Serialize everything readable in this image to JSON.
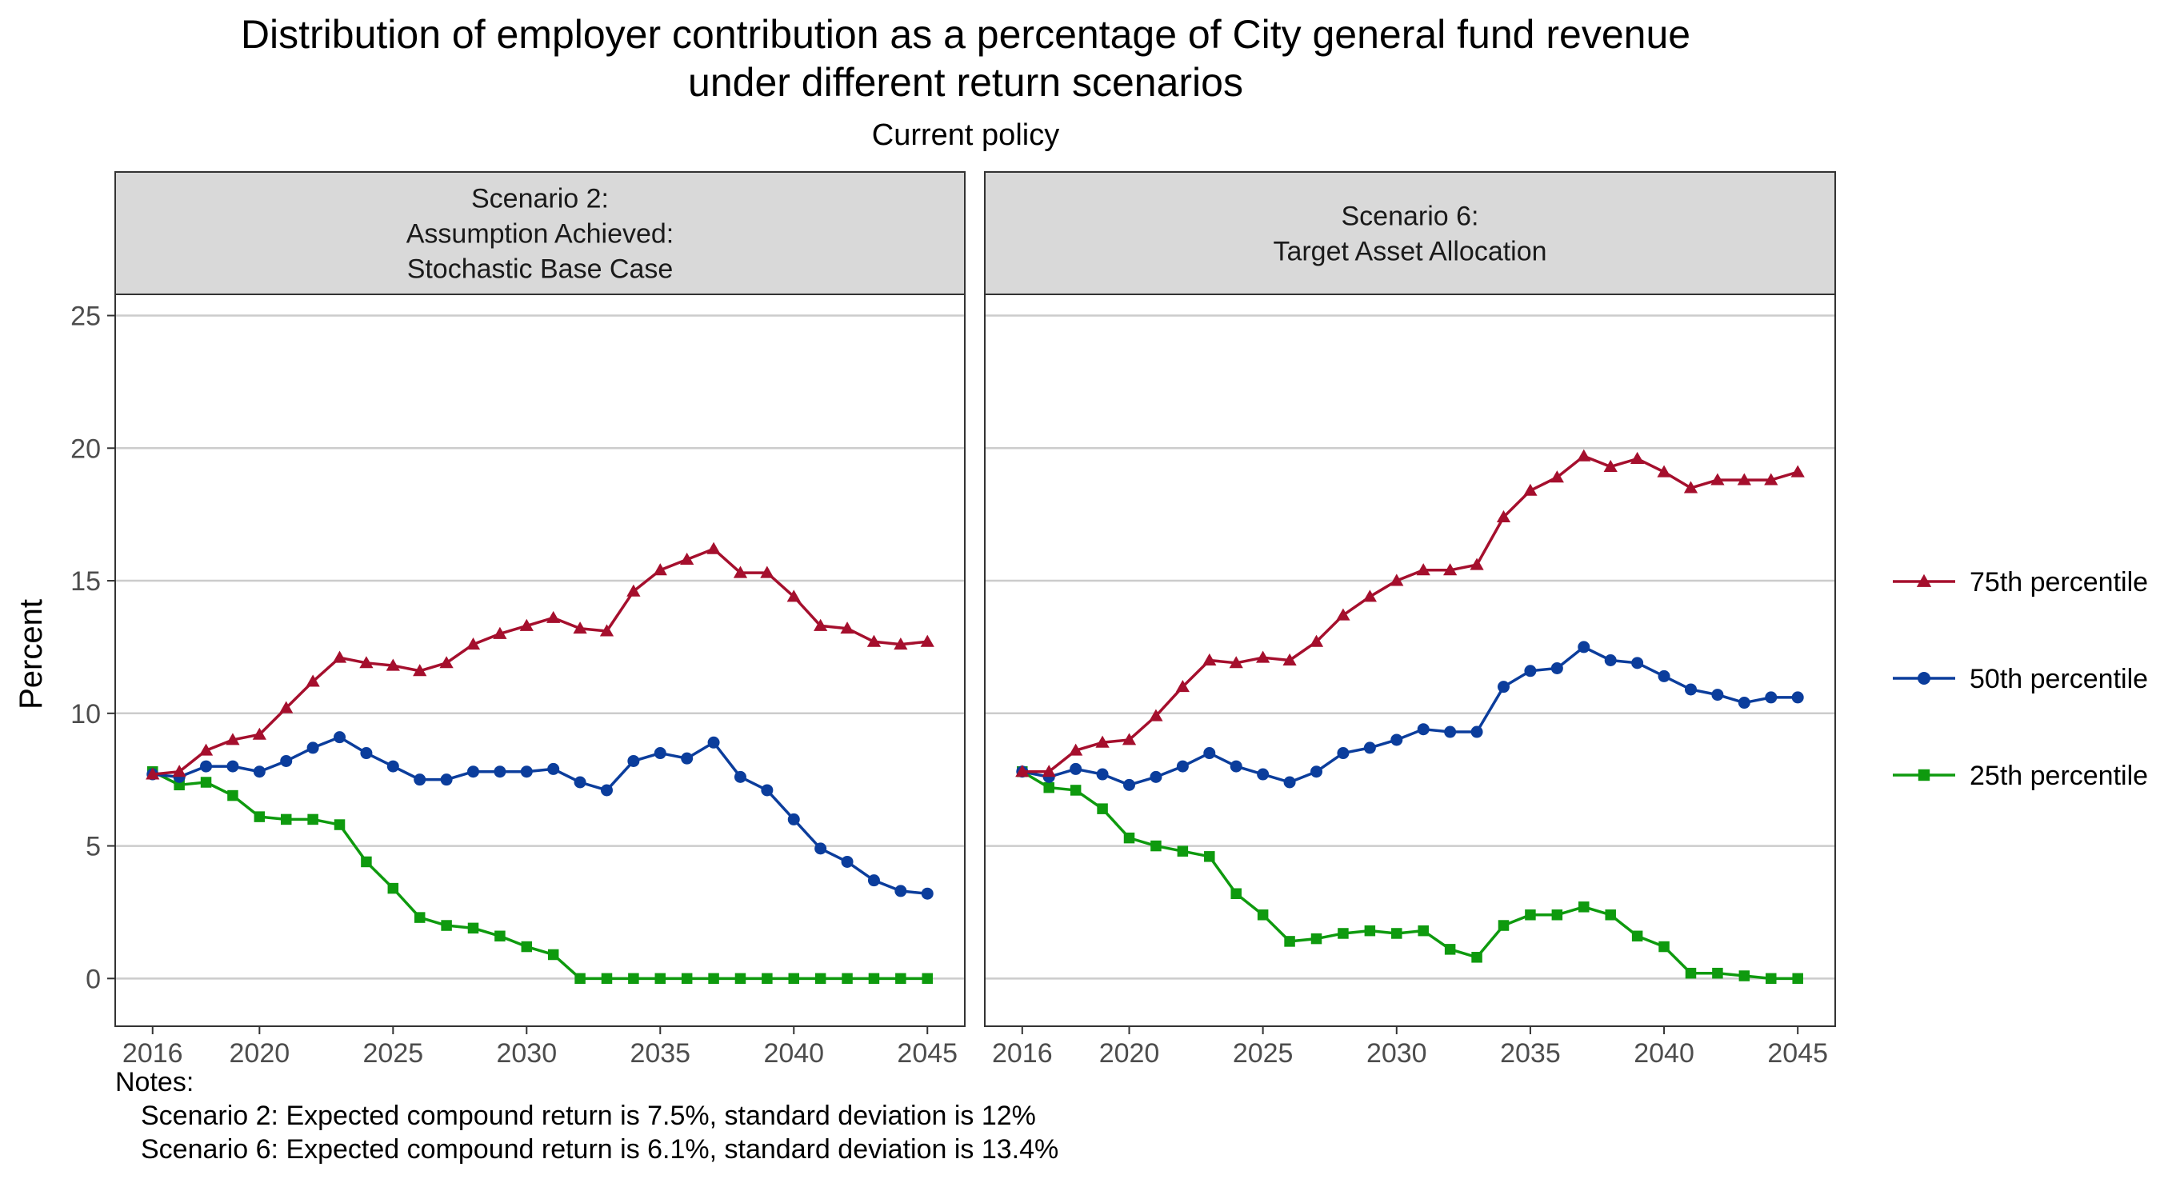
{
  "chart_data": {
    "type": "line",
    "title": "Distribution of employer contribution as a percentage of City general fund revenue",
    "title_line2": "under different return scenarios",
    "subtitle": "Current policy",
    "ylabel": "Percent",
    "xlabel": "",
    "ylim": [
      -1.8,
      25.8
    ],
    "xlim": [
      2014.6,
      2046.4
    ],
    "yticks": [
      0,
      5,
      10,
      15,
      20,
      25
    ],
    "xticks": [
      2016,
      2020,
      2025,
      2030,
      2035,
      2040,
      2045
    ],
    "grid": "horizontal major lines",
    "legend_position": "right",
    "legend": [
      {
        "label": "75th percentile",
        "color": "#a50f2d",
        "marker": "triangle"
      },
      {
        "label": "50th percentile",
        "color": "#0b3d9c",
        "marker": "circle"
      },
      {
        "label": "25th percentile",
        "color": "#0e9a0e",
        "marker": "square"
      }
    ],
    "x": [
      2016,
      2017,
      2018,
      2019,
      2020,
      2021,
      2022,
      2023,
      2024,
      2025,
      2026,
      2027,
      2028,
      2029,
      2030,
      2031,
      2032,
      2033,
      2034,
      2035,
      2036,
      2037,
      2038,
      2039,
      2040,
      2041,
      2042,
      2043,
      2044,
      2045
    ],
    "panels": [
      {
        "strip": [
          "Scenario 2:",
          "Assumption Achieved:",
          "Stochastic Base Case"
        ],
        "series": [
          {
            "name": "75th percentile",
            "values": [
              7.7,
              7.8,
              8.6,
              9.0,
              9.2,
              10.2,
              11.2,
              12.1,
              11.9,
              11.8,
              11.6,
              11.9,
              12.6,
              13.0,
              13.3,
              13.6,
              13.2,
              13.1,
              14.6,
              15.4,
              15.8,
              16.2,
              15.3,
              15.3,
              14.4,
              13.3,
              13.2,
              12.7,
              12.6,
              12.7
            ]
          },
          {
            "name": "50th percentile",
            "values": [
              7.7,
              7.6,
              8.0,
              8.0,
              7.8,
              8.2,
              8.7,
              9.1,
              8.5,
              8.0,
              7.5,
              7.5,
              7.8,
              7.8,
              7.8,
              7.9,
              7.4,
              7.1,
              8.2,
              8.5,
              8.3,
              8.9,
              7.6,
              7.1,
              6.0,
              4.9,
              4.4,
              3.7,
              3.3,
              3.2
            ]
          },
          {
            "name": "25th percentile",
            "values": [
              7.8,
              7.3,
              7.4,
              6.9,
              6.1,
              6.0,
              6.0,
              5.8,
              4.4,
              3.4,
              2.3,
              2.0,
              1.9,
              1.6,
              1.2,
              0.9,
              0.0,
              0.0,
              0.0,
              0.0,
              0.0,
              0.0,
              0.0,
              0.0,
              0.0,
              0.0,
              0.0,
              0.0,
              0.0,
              0.0
            ]
          }
        ]
      },
      {
        "strip": [
          "Scenario 6:",
          "Target Asset Allocation"
        ],
        "series": [
          {
            "name": "75th percentile",
            "values": [
              7.8,
              7.8,
              8.6,
              8.9,
              9.0,
              9.9,
              11.0,
              12.0,
              11.9,
              12.1,
              12.0,
              12.7,
              13.7,
              14.4,
              15.0,
              15.4,
              15.4,
              15.6,
              17.4,
              18.4,
              18.9,
              19.7,
              19.3,
              19.6,
              19.1,
              18.5,
              18.8,
              18.8,
              18.8,
              19.1
            ]
          },
          {
            "name": "50th percentile",
            "values": [
              7.8,
              7.6,
              7.9,
              7.7,
              7.3,
              7.6,
              8.0,
              8.5,
              8.0,
              7.7,
              7.4,
              7.8,
              8.5,
              8.7,
              9.0,
              9.4,
              9.3,
              9.3,
              11.0,
              11.6,
              11.7,
              12.5,
              12.0,
              11.9,
              11.4,
              10.9,
              10.7,
              10.4,
              10.6,
              10.6
            ]
          },
          {
            "name": "25th percentile",
            "values": [
              7.8,
              7.2,
              7.1,
              6.4,
              5.3,
              5.0,
              4.8,
              4.6,
              3.2,
              2.4,
              1.4,
              1.5,
              1.7,
              1.8,
              1.7,
              1.8,
              1.1,
              0.8,
              2.0,
              2.4,
              2.4,
              2.7,
              2.4,
              1.6,
              1.2,
              0.2,
              0.2,
              0.1,
              0.0,
              0.0
            ]
          }
        ]
      }
    ],
    "notes": [
      "Notes:",
      "Scenario 2: Expected compound return is 7.5%, standard deviation is 12%",
      "Scenario 6: Expected compound return is 6.1%, standard deviation is 13.4%"
    ]
  }
}
